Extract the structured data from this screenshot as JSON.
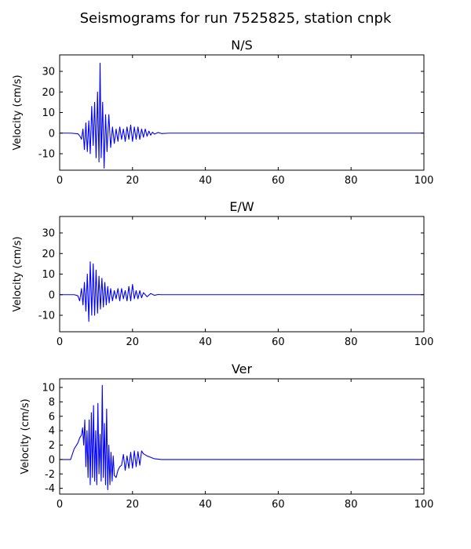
{
  "figure": {
    "title": "Seismograms for run 7525825, station cnpk"
  },
  "chart_data": [
    {
      "type": "line",
      "title": "N/S",
      "xlabel": "",
      "ylabel": "Velocity (cm/s)",
      "xlim": [
        0,
        100
      ],
      "ylim": [
        -18,
        38
      ],
      "xticks": [
        0,
        20,
        40,
        60,
        80,
        100
      ],
      "yticks": [
        -10,
        0,
        10,
        20,
        30
      ],
      "grid": false,
      "color": "#0000ff",
      "x": [
        0,
        3,
        5,
        5.6,
        6.0,
        6.4,
        6.8,
        7.2,
        7.6,
        8.0,
        8.4,
        8.8,
        9.2,
        9.6,
        10.0,
        10.4,
        10.8,
        11.1,
        11.4,
        11.8,
        12.2,
        12.6,
        13.0,
        13.5,
        14.0,
        14.5,
        15.0,
        15.5,
        16.0,
        16.5,
        17.0,
        17.5,
        18.0,
        18.5,
        19.0,
        19.5,
        20.0,
        20.5,
        21.0,
        21.5,
        22.0,
        22.5,
        23.0,
        23.5,
        24.0,
        24.5,
        25.0,
        25.5,
        26.0,
        27.0,
        28.0,
        30.0,
        35.0,
        100
      ],
      "y": [
        0,
        0,
        -0.3,
        -1.5,
        -3,
        2,
        -8,
        5,
        -9,
        6,
        -10,
        13,
        -6,
        15,
        -12,
        20,
        -14,
        34,
        -12,
        15,
        -17,
        9,
        -9,
        9,
        -7,
        3,
        -5,
        2,
        -4,
        3,
        -3,
        2,
        -4,
        3,
        -3,
        4,
        -4,
        3,
        -3,
        3,
        -3,
        2,
        -2,
        2,
        -1.5,
        1,
        -1,
        0.5,
        -0.5,
        0.3,
        -0.2,
        0,
        0,
        0
      ]
    },
    {
      "type": "line",
      "title": "E/W",
      "xlabel": "",
      "ylabel": "Velocity (cm/s)",
      "xlim": [
        0,
        100
      ],
      "ylim": [
        -18,
        38
      ],
      "xticks": [
        0,
        20,
        40,
        60,
        80,
        100
      ],
      "yticks": [
        -10,
        0,
        10,
        20,
        30
      ],
      "grid": false,
      "color": "#0000ff",
      "x": [
        0,
        4,
        5,
        5.5,
        6.0,
        6.4,
        6.8,
        7.2,
        7.6,
        8.0,
        8.4,
        8.8,
        9.2,
        9.6,
        10.0,
        10.4,
        10.8,
        11.2,
        11.6,
        12.0,
        12.4,
        12.8,
        13.2,
        13.6,
        14.0,
        14.5,
        15.0,
        15.5,
        16.0,
        16.5,
        17.0,
        17.5,
        18.0,
        18.5,
        19.0,
        19.5,
        20.0,
        20.5,
        21.0,
        21.5,
        22.0,
        22.5,
        23.0,
        24.0,
        25.0,
        26.0,
        27.0,
        28.0,
        100
      ],
      "y": [
        0,
        0,
        -0.5,
        -3,
        3,
        -5,
        6,
        -8,
        10,
        -13,
        16,
        -10,
        15,
        -10,
        12,
        -9,
        9,
        -7,
        8,
        -6,
        6,
        -5,
        4,
        -4,
        3,
        -3,
        2,
        -2,
        3,
        -3,
        3,
        -2,
        2,
        -3,
        4,
        -3,
        5,
        -2,
        2,
        -2,
        2,
        -1.5,
        1,
        -1,
        0.6,
        -0.3,
        0.1,
        0,
        0
      ]
    },
    {
      "type": "line",
      "title": "Ver",
      "xlabel": "",
      "ylabel": "Velocity (cm/s)",
      "xlim": [
        0,
        100
      ],
      "ylim": [
        -4.8,
        11.2
      ],
      "xticks": [
        0,
        20,
        40,
        60,
        80,
        100
      ],
      "yticks": [
        -4,
        -2,
        0,
        2,
        4,
        6,
        8,
        10
      ],
      "grid": false,
      "color": "#0000ff",
      "x": [
        0,
        3,
        4,
        5,
        5.5,
        6.0,
        6.3,
        6.6,
        6.9,
        7.2,
        7.5,
        7.8,
        8.1,
        8.4,
        8.7,
        9.0,
        9.3,
        9.6,
        9.9,
        10.2,
        10.5,
        10.8,
        11.1,
        11.4,
        11.7,
        12.0,
        12.3,
        12.6,
        12.9,
        13.2,
        13.5,
        13.8,
        14.1,
        14.4,
        14.7,
        15.0,
        15.5,
        16.0,
        16.5,
        17.0,
        17.5,
        18.0,
        18.5,
        19.0,
        19.5,
        20.0,
        20.5,
        21.0,
        21.5,
        22.0,
        22.5,
        23.0,
        24.0,
        25.0,
        26.0,
        27.0,
        28.0,
        30.0,
        100
      ],
      "y": [
        0,
        0,
        1.5,
        2.3,
        3.0,
        3.4,
        4.4,
        2.0,
        5.5,
        -1.0,
        4.0,
        -2.5,
        5.5,
        -3.5,
        6.5,
        -2.5,
        7.5,
        -3.0,
        4.0,
        -3.5,
        7.8,
        -2.0,
        3.5,
        -3.0,
        10.3,
        -2.5,
        5.0,
        -3.5,
        7.0,
        -4.2,
        2.0,
        -3.5,
        1.0,
        -3.0,
        0.5,
        -2.2,
        -2.5,
        -1.5,
        -1.0,
        -0.8,
        0.7,
        -1.5,
        0.5,
        -1.2,
        1.0,
        -1.2,
        1.2,
        -1.0,
        1.1,
        -0.8,
        1.2,
        0.8,
        0.5,
        0.3,
        0.1,
        0.05,
        0,
        0,
        0
      ]
    }
  ]
}
